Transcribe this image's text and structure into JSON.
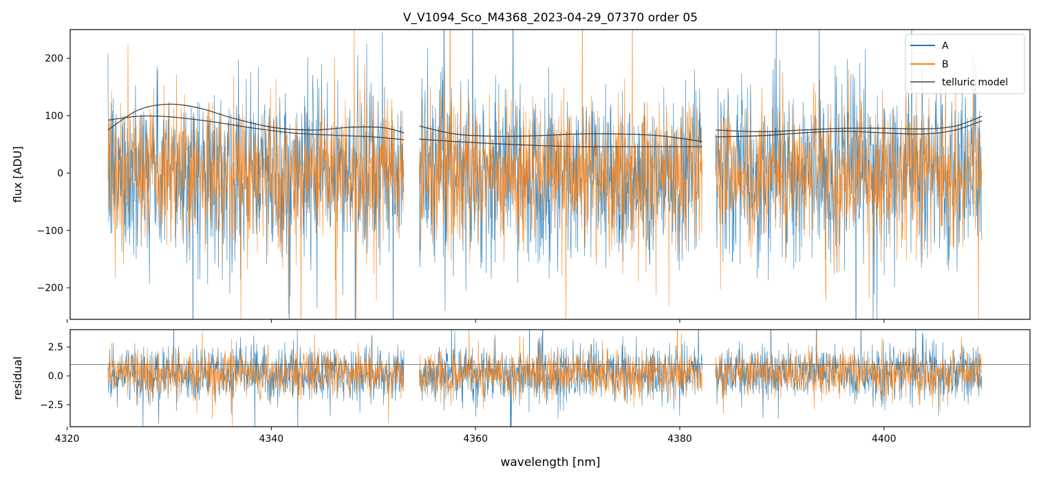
{
  "chart_data": [
    {
      "type": "line",
      "panel": "top",
      "title": "V_V1094_Sco_M4368_2023-04-29_07370  order 05",
      "xlabel": "",
      "ylabel": "flux [ADU]",
      "xlim": [
        4320.3,
        4414.3
      ],
      "ylim": [
        -255,
        250
      ],
      "yticks": [
        200,
        100,
        0,
        -100,
        -200
      ],
      "ytick_labels": [
        "200",
        "100",
        "0",
        "−100",
        "−200"
      ],
      "segments": [
        [
          4324.0,
          4353.0
        ],
        [
          4354.5,
          4382.2
        ],
        [
          4383.5,
          4409.6
        ]
      ],
      "series": [
        {
          "name": "A",
          "color": "#1f77b4",
          "noise_sigma": 75
        },
        {
          "name": "B",
          "color": "#ff7f0e",
          "noise_sigma": 62
        }
      ],
      "telluric_model": {
        "name": "telluric model",
        "color": "#404040",
        "curves": [
          {
            "x": [
              4324,
              4327,
              4330,
              4333,
              4336,
              4340,
              4344,
              4348,
              4351,
              4353
            ],
            "y": [
              75,
              110,
              120,
              113,
              97,
              80,
              75,
              80,
              79,
              70
            ]
          },
          {
            "x": [
              4324,
              4327,
              4330,
              4334,
              4338,
              4342,
              4346,
              4350,
              4353
            ],
            "y": [
              92,
              99,
              98,
              90,
              79,
              70,
              66,
              63,
              58
            ]
          },
          {
            "x": [
              4354.5,
              4358,
              4362,
              4366,
              4370,
              4374,
              4378,
              4382.2
            ],
            "y": [
              82,
              68,
              64,
              65,
              68,
              68,
              65,
              55
            ]
          },
          {
            "x": [
              4354.5,
              4358,
              4362,
              4366,
              4370,
              4374,
              4378,
              4382.2
            ],
            "y": [
              59,
              55,
              51,
              48,
              46,
              46,
              46,
              46
            ]
          },
          {
            "x": [
              4383.5,
              4388,
              4392,
              4396,
              4400,
              4404,
              4407,
              4409.6
            ],
            "y": [
              75,
              72,
              75,
              78,
              78,
              77,
              82,
              99
            ]
          },
          {
            "x": [
              4383.5,
              4388,
              4392,
              4396,
              4400,
              4404,
              4407,
              4409.6
            ],
            "y": [
              63,
              65,
              70,
              73,
              70,
              68,
              75,
              91
            ]
          }
        ]
      },
      "legend": {
        "position": "top-right",
        "entries": [
          "A",
          "B",
          "telluric model"
        ]
      }
    },
    {
      "type": "line",
      "panel": "bottom",
      "xlabel": "wavelength [nm]",
      "ylabel": "residual",
      "xlim": [
        4320.3,
        4414.3
      ],
      "ylim": [
        -4.4,
        4.0
      ],
      "yticks": [
        2.5,
        0.0,
        -2.5
      ],
      "ytick_labels": [
        "2.5",
        "0.0",
        "−2.5"
      ],
      "xticks": [
        4320,
        4340,
        4360,
        4380,
        4400
      ],
      "xtick_labels": [
        "4320",
        "4340",
        "4360",
        "4380",
        "4400"
      ],
      "reference_line": 1.0,
      "segments": [
        [
          4324.0,
          4353.0
        ],
        [
          4354.5,
          4382.2
        ],
        [
          4383.5,
          4409.6
        ]
      ],
      "series": [
        {
          "name": "A",
          "color": "#1f77b4",
          "noise_sigma": 1.2
        },
        {
          "name": "B",
          "color": "#ff7f0e",
          "noise_sigma": 1.0
        }
      ]
    }
  ]
}
